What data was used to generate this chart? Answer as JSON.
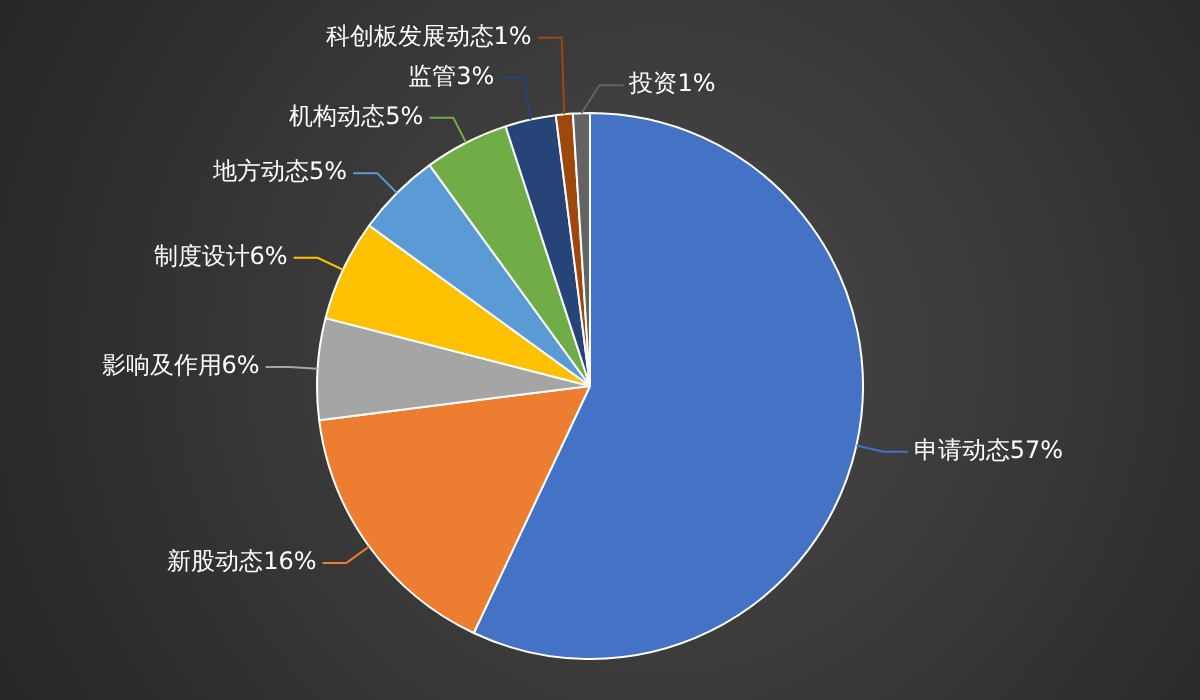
{
  "chart_data": {
    "type": "pie",
    "categories": [
      "申请动态",
      "新股动态",
      "影响及作用",
      "制度设计",
      "地方动态",
      "机构动态",
      "监管",
      "科创板发展动态",
      "投资"
    ],
    "values": [
      57,
      16,
      6,
      6,
      5,
      5,
      3,
      1,
      1
    ],
    "value_labels": [
      "57%",
      "16%",
      "6%",
      "6%",
      "5%",
      "5%",
      "3%",
      "1%",
      "1%"
    ],
    "colors": [
      "#4472c4",
      "#ed7d31",
      "#a5a5a5",
      "#ffc000",
      "#5b9bd5",
      "#70ad47",
      "#264478",
      "#9e480e",
      "#636363"
    ],
    "legend": false
  }
}
